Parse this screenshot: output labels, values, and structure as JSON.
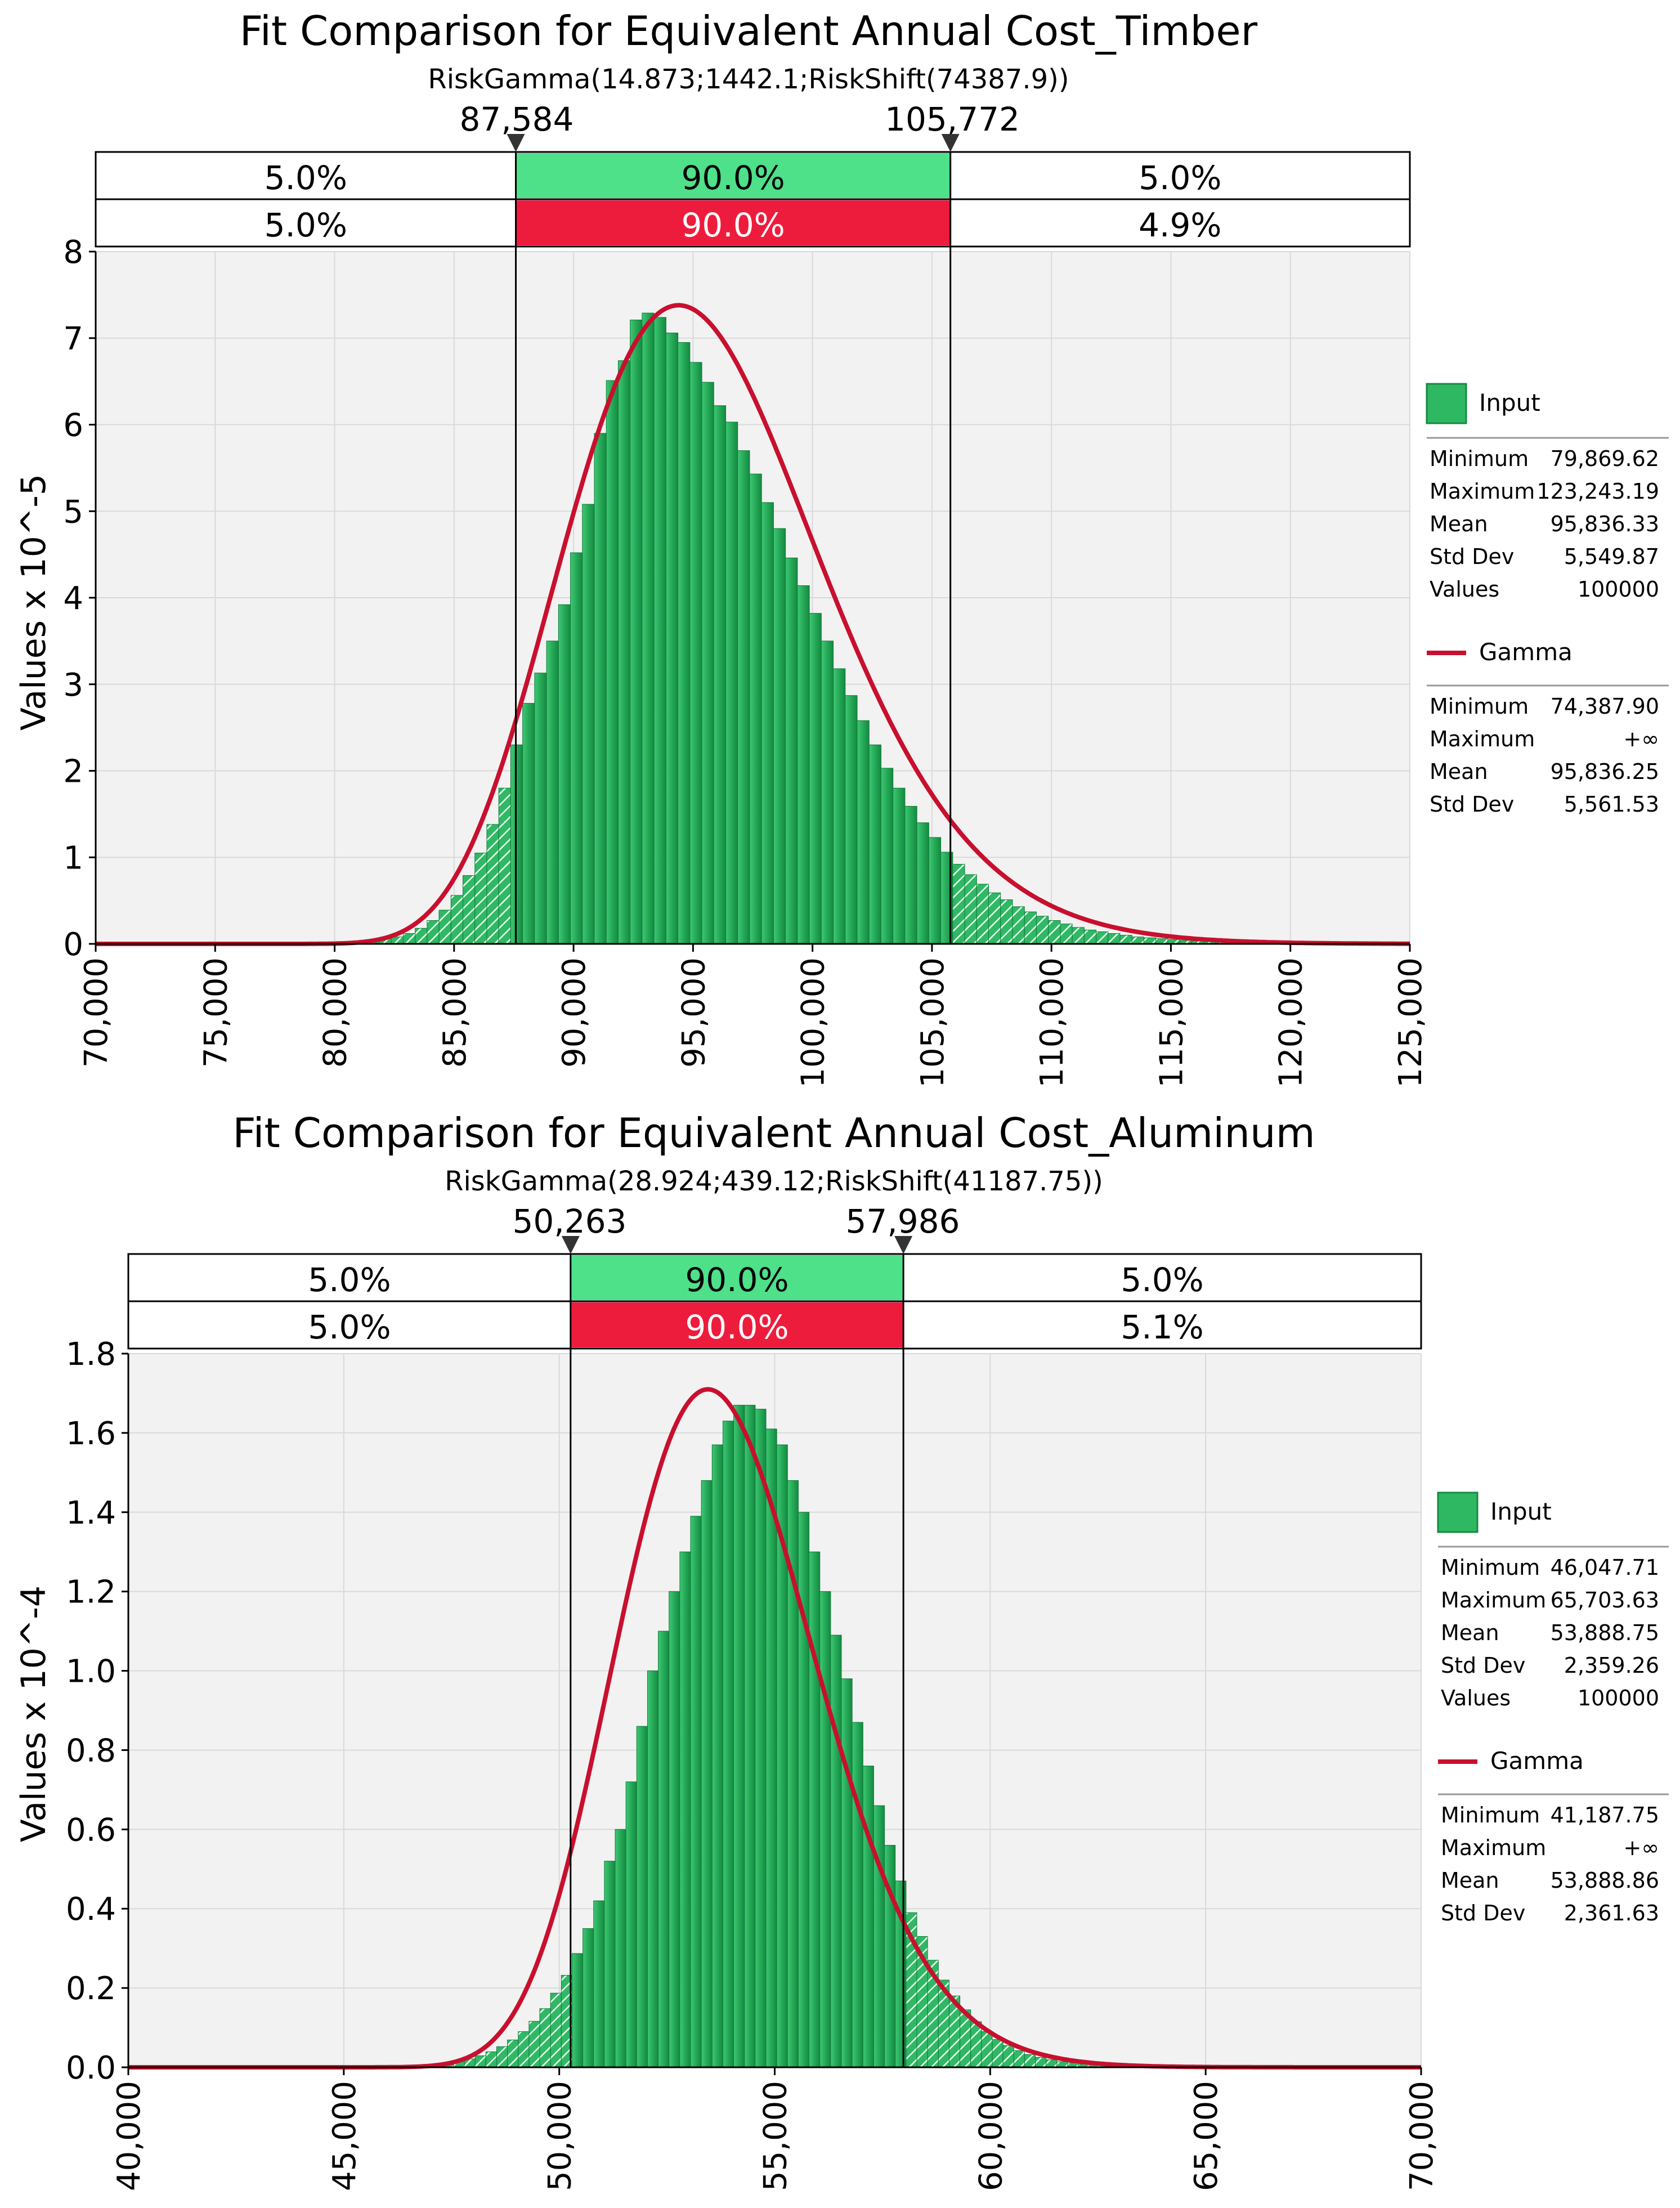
{
  "colors": {
    "plot_bg": "#f2f2f2",
    "grid": "#d9d9d9",
    "bar_light": "#5fd98b",
    "bar_dark": "#189547",
    "bar_edge": "#0f7a38",
    "curve": "#c8102e",
    "band_green": "#4fe08a",
    "band_red": "#ee1c3c",
    "hatch": "#ffffff"
  },
  "chart_data": [
    {
      "type": "histogram_with_fit",
      "title": "Fit Comparison for Equivalent Annual Cost_Timber",
      "subtitle": "RiskGamma(14.873;1442.1;RiskShift(74387.9))",
      "ylabel": "Values x 10^-5",
      "xlim": [
        70000,
        125000
      ],
      "ylim": [
        0,
        8
      ],
      "x_ticks": [
        70000,
        75000,
        80000,
        85000,
        90000,
        95000,
        100000,
        105000,
        110000,
        115000,
        120000,
        125000
      ],
      "x_tick_labels": [
        "70,000",
        "75,000",
        "80,000",
        "85,000",
        "90,000",
        "95,000",
        "100,000",
        "105,000",
        "110,000",
        "115,000",
        "120,000",
        "125,000"
      ],
      "y_ticks": [
        0,
        1,
        2,
        3,
        4,
        5,
        6,
        7,
        8
      ],
      "y_tick_labels": [
        "0",
        "1",
        "2",
        "3",
        "4",
        "5",
        "6",
        "7",
        "8"
      ],
      "markers": [
        87584,
        105772
      ],
      "marker_labels": [
        "87,584",
        "105,772"
      ],
      "band_input": [
        "5.0%",
        "90.0%",
        "5.0%"
      ],
      "band_fit": [
        "5.0%",
        "90.0%",
        "4.9%"
      ],
      "fit": {
        "shape": 14.873,
        "scale": 1442.1,
        "shift": 74387.9,
        "peak": 7.38
      },
      "histogram": {
        "start": 79869.62,
        "bin_width": 500,
        "values": [
          0.01,
          0.02,
          0.03,
          0.04,
          0.06,
          0.08,
          0.12,
          0.18,
          0.27,
          0.39,
          0.56,
          0.79,
          1.05,
          1.38,
          1.8,
          2.3,
          2.78,
          3.13,
          3.5,
          3.92,
          4.52,
          5.08,
          5.9,
          6.51,
          6.74,
          7.21,
          7.29,
          7.24,
          7.06,
          6.95,
          6.72,
          6.49,
          6.22,
          6.03,
          5.7,
          5.43,
          5.1,
          4.8,
          4.46,
          4.14,
          3.82,
          3.5,
          3.18,
          2.87,
          2.58,
          2.3,
          2.03,
          1.8,
          1.59,
          1.4,
          1.23,
          1.06,
          0.92,
          0.8,
          0.69,
          0.59,
          0.51,
          0.43,
          0.37,
          0.32,
          0.27,
          0.23,
          0.19,
          0.16,
          0.14,
          0.12,
          0.1,
          0.08,
          0.07,
          0.06,
          0.05,
          0.04,
          0.035,
          0.03,
          0.025,
          0.02,
          0.017,
          0.014,
          0.011,
          0.009,
          0.007,
          0.006,
          0.005,
          0.004,
          0.003
        ]
      },
      "legend": {
        "input_label": "Input",
        "input_stats": [
          {
            "label": "Minimum",
            "value": "79,869.62"
          },
          {
            "label": "Maximum",
            "value": "123,243.19"
          },
          {
            "label": "Mean",
            "value": "95,836.33"
          },
          {
            "label": "Std Dev",
            "value": "5,549.87"
          },
          {
            "label": "Values",
            "value": "100000"
          }
        ],
        "fit_label": "Gamma",
        "fit_stats": [
          {
            "label": "Minimum",
            "value": "74,387.90"
          },
          {
            "label": "Maximum",
            "value": "+∞"
          },
          {
            "label": "Mean",
            "value": "95,836.25"
          },
          {
            "label": "Std Dev",
            "value": "5,561.53"
          }
        ]
      }
    },
    {
      "type": "histogram_with_fit",
      "title": "Fit Comparison for Equivalent Annual Cost_Aluminum",
      "subtitle": "RiskGamma(28.924;439.12;RiskShift(41187.75))",
      "ylabel": "Values x 10^-4",
      "xlim": [
        40000,
        70000
      ],
      "ylim": [
        0,
        1.8
      ],
      "x_ticks": [
        40000,
        45000,
        50000,
        55000,
        60000,
        65000,
        70000
      ],
      "x_tick_labels": [
        "40,000",
        "45,000",
        "50,000",
        "55,000",
        "60,000",
        "65,000",
        "70,000"
      ],
      "y_ticks": [
        0,
        0.2,
        0.4,
        0.6,
        0.8,
        1.0,
        1.2,
        1.4,
        1.6,
        1.8
      ],
      "y_tick_labels": [
        "0.0",
        "0.2",
        "0.4",
        "0.6",
        "0.8",
        "1.0",
        "1.2",
        "1.4",
        "1.6",
        "1.8"
      ],
      "markers": [
        50263,
        57986
      ],
      "marker_labels": [
        "50,263",
        "57,986"
      ],
      "band_input": [
        "5.0%",
        "90.0%",
        "5.0%"
      ],
      "band_fit": [
        "5.0%",
        "90.0%",
        "5.1%"
      ],
      "fit": {
        "shape": 28.924,
        "scale": 439.12,
        "shift": 41187.75,
        "peak": 1.71
      },
      "histogram": {
        "start": 46047.71,
        "bin_width": 250,
        "values": [
          0.002,
          0.003,
          0.004,
          0.006,
          0.008,
          0.011,
          0.015,
          0.021,
          0.029,
          0.039,
          0.052,
          0.069,
          0.09,
          0.116,
          0.148,
          0.187,
          0.232,
          0.287,
          0.35,
          0.42,
          0.52,
          0.6,
          0.72,
          0.86,
          1.0,
          1.1,
          1.2,
          1.3,
          1.39,
          1.48,
          1.57,
          1.63,
          1.67,
          1.67,
          1.66,
          1.61,
          1.57,
          1.48,
          1.4,
          1.3,
          1.2,
          1.09,
          0.98,
          0.87,
          0.76,
          0.66,
          0.56,
          0.47,
          0.39,
          0.33,
          0.27,
          0.22,
          0.18,
          0.145,
          0.115,
          0.09,
          0.07,
          0.055,
          0.042,
          0.032,
          0.025,
          0.019,
          0.014,
          0.011,
          0.008,
          0.006,
          0.004,
          0.003,
          0.002,
          0.0015,
          0.001,
          0.0008,
          0.0006,
          0.0004,
          0.0003,
          0.0002,
          0.0002,
          0.0001,
          0.0001
        ]
      },
      "legend": {
        "input_label": "Input",
        "input_stats": [
          {
            "label": "Minimum",
            "value": "46,047.71"
          },
          {
            "label": "Maximum",
            "value": "65,703.63"
          },
          {
            "label": "Mean",
            "value": "53,888.75"
          },
          {
            "label": "Std Dev",
            "value": "2,359.26"
          },
          {
            "label": "Values",
            "value": "100000"
          }
        ],
        "fit_label": "Gamma",
        "fit_stats": [
          {
            "label": "Minimum",
            "value": "41,187.75"
          },
          {
            "label": "Maximum",
            "value": "+∞"
          },
          {
            "label": "Mean",
            "value": "53,888.86"
          },
          {
            "label": "Std Dev",
            "value": "2,361.63"
          }
        ]
      }
    }
  ]
}
